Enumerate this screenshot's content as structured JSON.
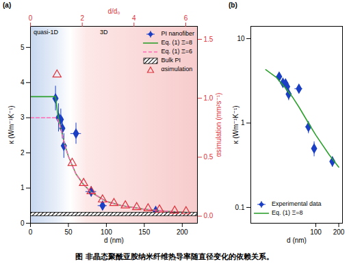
{
  "chart_data": [
    {
      "type": "scatter",
      "title": "(a)",
      "x_label": "d (nm)",
      "y_label": "κ (Wm⁻¹K⁻¹)",
      "x2_label": "d/d₀",
      "y2_label": "αsimulation (mm²s⁻¹)",
      "annotations": [
        "quasi-1D",
        "3D"
      ],
      "xlim": [
        0,
        220
      ],
      "xticks": [
        0,
        50,
        100,
        150,
        200
      ],
      "ylim": [
        0,
        5.6
      ],
      "yticks": [
        0,
        1,
        2,
        3,
        4,
        5
      ],
      "x2lim": [
        0,
        6.45
      ],
      "x2ticks": [
        0,
        2,
        4,
        6
      ],
      "y2lim": [
        -0.06,
        1.61
      ],
      "y2ticks": [
        {
          "value": 0,
          "label": "0.0"
        },
        {
          "value": 0.5,
          "label": "0.5"
        },
        {
          "value": 1,
          "label": "1.0"
        },
        {
          "value": 1.5,
          "label": "1.5"
        }
      ],
      "legend": "upper right",
      "grid": false,
      "series": [
        {
          "name": "PI nanofiber",
          "type": "scatter",
          "marker": "diamond",
          "color": "#1a3fc4",
          "x": [
            33,
            37,
            40,
            42,
            44,
            60,
            80,
            95,
            165
          ],
          "values": [
            3.55,
            3.0,
            2.95,
            2.7,
            2.2,
            2.55,
            0.9,
            0.5,
            0.35
          ],
          "xerr": [
            3,
            3,
            3,
            3,
            3,
            7,
            7,
            6,
            8
          ],
          "yerr": [
            0.35,
            0.4,
            0.3,
            0.3,
            0.35,
            0.3,
            0.15,
            0.1,
            0.05
          ]
        },
        {
          "name": "Eq. (1) Ξ=8",
          "type": "line",
          "line_style": "solid",
          "color": "#2ca02c",
          "x": [
            0,
            33,
            36,
            40,
            45,
            50,
            60,
            70,
            80,
            100,
            120,
            150,
            180,
            210
          ],
          "values": [
            3.6,
            3.6,
            3.1,
            2.7,
            2.25,
            1.9,
            1.4,
            1.1,
            0.88,
            0.62,
            0.5,
            0.4,
            0.34,
            0.3
          ]
        },
        {
          "name": "Eq. (1) Ξ=6",
          "type": "line",
          "line_style": "dashed",
          "color": "#ff69b4",
          "x": [
            0,
            33,
            36,
            40,
            45,
            50,
            60,
            70,
            80,
            100,
            120,
            150,
            180,
            210
          ],
          "values": [
            3.0,
            3.0,
            2.95,
            2.7,
            2.25,
            1.9,
            1.4,
            1.1,
            0.88,
            0.62,
            0.5,
            0.4,
            0.34,
            0.3
          ]
        },
        {
          "name": "Bulk PI",
          "type": "band",
          "color": "#000000",
          "low": 0.2,
          "high": 0.3
        },
        {
          "name": "αsimulation",
          "type": "scatter",
          "marker": "triangle",
          "color": "#e0303a",
          "axis": "y2",
          "x": [
            35,
            55,
            70,
            80,
            95,
            110,
            125,
            140,
            155,
            170,
            190,
            205
          ],
          "values": [
            1.2,
            0.45,
            0.28,
            0.21,
            0.14,
            0.11,
            0.09,
            0.075,
            0.065,
            0.055,
            0.045,
            0.04
          ]
        }
      ]
    },
    {
      "type": "scatter",
      "title": "(b)",
      "x_label": "d (nm)",
      "y_label": "κ (Wm⁻¹K⁻¹)",
      "log": true,
      "xlim": [
        14,
        224
      ],
      "xticks": [
        100,
        200
      ],
      "ylim": [
        0.065,
        14
      ],
      "yticks": [
        0.1,
        1,
        10
      ],
      "legend": "lower left",
      "grid": false,
      "series": [
        {
          "name": "Experimental data",
          "type": "scatter",
          "marker": "diamond",
          "color": "#1a3fc4",
          "x": [
            33,
            37,
            40,
            42,
            44,
            60,
            80,
            95,
            165
          ],
          "values": [
            3.55,
            3.0,
            2.95,
            2.7,
            2.2,
            2.55,
            0.9,
            0.5,
            0.35
          ],
          "xerr": [
            3,
            3,
            3,
            3,
            3,
            7,
            7,
            6,
            8
          ],
          "yerr": [
            0.35,
            0.4,
            0.3,
            0.3,
            0.35,
            0.3,
            0.15,
            0.1,
            0.05
          ]
        },
        {
          "name": "Eq. (1) Ξ=8",
          "type": "line",
          "line_style": "solid",
          "color": "#2ca02c",
          "x": [
            22,
            30,
            40,
            50,
            60,
            80,
            100,
            150,
            200
          ],
          "values": [
            4.3,
            3.5,
            2.6,
            2.0,
            1.55,
            1.0,
            0.72,
            0.42,
            0.3
          ]
        }
      ]
    }
  ],
  "caption": "图 非晶态聚酰亚胺纳米纤维热导率随直径变化的依赖关系。"
}
